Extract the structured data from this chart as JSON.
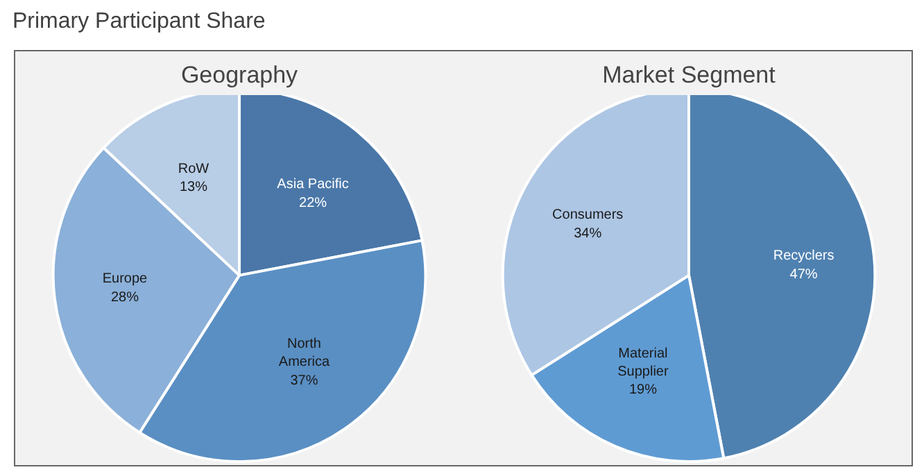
{
  "chart_data": [
    {
      "type": "pie",
      "title": "Geography",
      "annotations": [
        "Primary Participant Share"
      ],
      "categories": [
        "Asia Pacific",
        "North America",
        "Europe",
        "RoW"
      ],
      "values": [
        22,
        37,
        28,
        13
      ],
      "value_labels": [
        "22%",
        "37%",
        "28%",
        "13%"
      ],
      "colors": [
        "#4a77a8",
        "#5a8fc3",
        "#8bb0d9",
        "#b8cde6"
      ]
    },
    {
      "type": "pie",
      "title": "Market Segment",
      "categories": [
        "Recyclers",
        "Material Supplier",
        "Consumers"
      ],
      "values": [
        47,
        19,
        34
      ],
      "value_labels": [
        "47%",
        "19%",
        "34%"
      ],
      "colors": [
        "#4f81b0",
        "#5f9bd3",
        "#adc6e4"
      ]
    }
  ]
}
